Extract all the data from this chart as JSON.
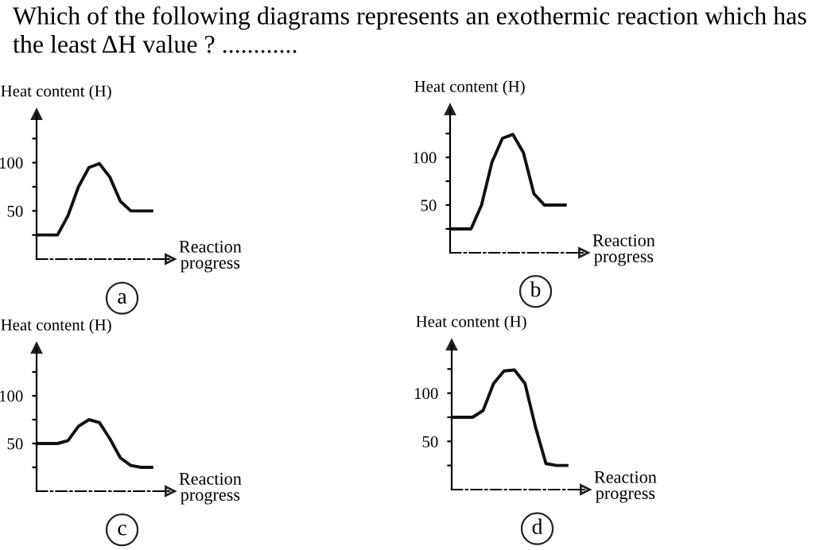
{
  "chart_data": [
    {
      "type": "line",
      "title": "Which of the following diagrams represents an exothermic reaction which has the least ΔH value ? ............",
      "ylabel": "Heat content (H)",
      "xlabel": "Reaction progress",
      "annotations": [
        "a"
      ],
      "categories": [
        null,
        null,
        null,
        null,
        null,
        null,
        null,
        null,
        null,
        null,
        null,
        null
      ],
      "values": [
        25,
        25,
        25,
        45,
        75,
        95,
        99,
        85,
        60,
        50,
        50,
        50
      ],
      "color": "#111111",
      "ylim": [
        0,
        150
      ],
      "yticks": [
        {
          "value": 25,
          "label": null
        },
        50,
        {
          "value": 75,
          "label": null
        },
        100,
        {
          "value": 125,
          "label": null
        }
      ],
      "tick_labels": "y",
      "grid": false,
      "legend": false,
      "marker": "none",
      "line_style": "solid"
    },
    {
      "type": "line",
      "ylabel": "Heat content (H)",
      "xlabel": "Reaction progress",
      "annotations": [
        "b"
      ],
      "categories": [
        null,
        null,
        null,
        null,
        null,
        null,
        null,
        null,
        null,
        null,
        null,
        null
      ],
      "values": [
        25,
        25,
        25,
        50,
        95,
        120,
        124,
        105,
        62,
        50,
        50,
        50
      ],
      "color": "#111111",
      "ylim": [
        0,
        150
      ],
      "yticks": [
        {
          "value": 25,
          "label": null
        },
        50,
        {
          "value": 75,
          "label": null
        },
        100,
        {
          "value": 125,
          "label": null
        }
      ],
      "tick_labels": "y",
      "grid": false,
      "legend": false,
      "marker": "none",
      "line_style": "solid"
    },
    {
      "type": "line",
      "ylabel": "Heat content (H)",
      "xlabel": "Reaction progress",
      "annotations": [
        "c"
      ],
      "categories": [
        null,
        null,
        null,
        null,
        null,
        null,
        null,
        null,
        null,
        null,
        null,
        null
      ],
      "values": [
        50,
        50,
        50,
        53,
        68,
        75,
        72,
        55,
        35,
        27,
        25,
        25
      ],
      "color": "#111111",
      "ylim": [
        0,
        150
      ],
      "yticks": [
        {
          "value": 25,
          "label": null
        },
        50,
        {
          "value": 75,
          "label": null
        },
        100,
        {
          "value": 125,
          "label": null
        }
      ],
      "tick_labels": "y",
      "grid": false,
      "legend": false,
      "marker": "none",
      "line_style": "solid"
    },
    {
      "type": "line",
      "ylabel": "Heat content (H)",
      "xlabel": "Reaction progress",
      "annotations": [
        "d"
      ],
      "categories": [
        null,
        null,
        null,
        null,
        null,
        null,
        null,
        null,
        null,
        null,
        null,
        null
      ],
      "values": [
        75,
        75,
        75,
        82,
        110,
        123,
        124,
        110,
        65,
        27,
        25,
        25
      ],
      "color": "#111111",
      "ylim": [
        0,
        150
      ],
      "yticks": [
        {
          "value": 25,
          "label": null
        },
        50,
        {
          "value": 75,
          "label": null
        },
        100,
        {
          "value": 125,
          "label": null
        }
      ],
      "tick_labels": "y",
      "grid": false,
      "legend": false,
      "marker": "none",
      "line_style": "solid"
    }
  ]
}
